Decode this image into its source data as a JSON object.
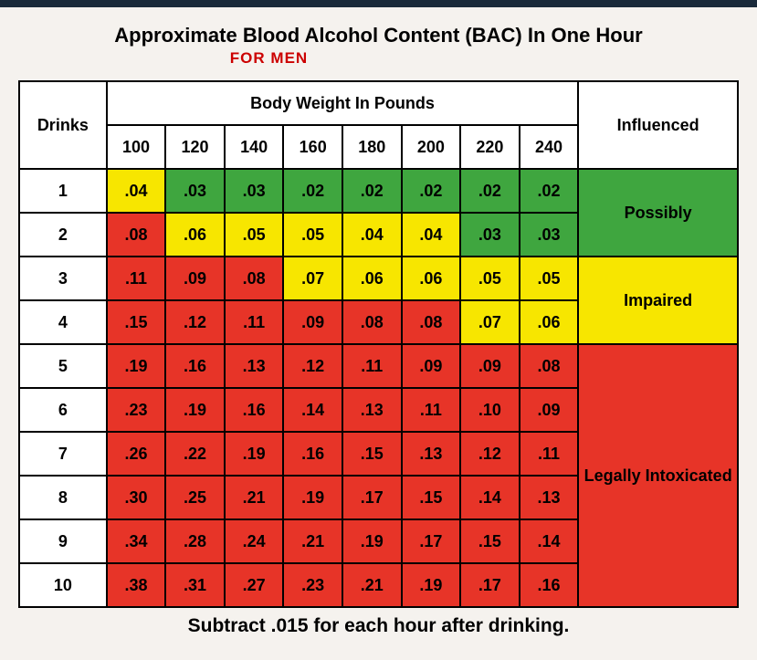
{
  "title": "Approximate Blood Alcohol Content (BAC) In One Hour",
  "subtitle": "FOR MEN",
  "headers": {
    "drinks": "Drinks",
    "weight_span": "Body Weight In Pounds",
    "influenced": "Influenced"
  },
  "weights": [
    "100",
    "120",
    "140",
    "160",
    "180",
    "200",
    "220",
    "240"
  ],
  "drinks": [
    "1",
    "2",
    "3",
    "4",
    "5",
    "6",
    "7",
    "8",
    "9",
    "10"
  ],
  "values": [
    [
      ".04",
      ".03",
      ".03",
      ".02",
      ".02",
      ".02",
      ".02",
      ".02"
    ],
    [
      ".08",
      ".06",
      ".05",
      ".05",
      ".04",
      ".04",
      ".03",
      ".03"
    ],
    [
      ".11",
      ".09",
      ".08",
      ".07",
      ".06",
      ".06",
      ".05",
      ".05"
    ],
    [
      ".15",
      ".12",
      ".11",
      ".09",
      ".08",
      ".08",
      ".07",
      ".06"
    ],
    [
      ".19",
      ".16",
      ".13",
      ".12",
      ".11",
      ".09",
      ".09",
      ".08"
    ],
    [
      ".23",
      ".19",
      ".16",
      ".14",
      ".13",
      ".11",
      ".10",
      ".09"
    ],
    [
      ".26",
      ".22",
      ".19",
      ".16",
      ".15",
      ".13",
      ".12",
      ".11"
    ],
    [
      ".30",
      ".25",
      ".21",
      ".19",
      ".17",
      ".15",
      ".14",
      ".13"
    ],
    [
      ".34",
      ".28",
      ".24",
      ".21",
      ".19",
      ".17",
      ".15",
      ".14"
    ],
    [
      ".38",
      ".31",
      ".27",
      ".23",
      ".21",
      ".19",
      ".17",
      ".16"
    ]
  ],
  "value_levels": [
    [
      "impaired",
      "possibly",
      "possibly",
      "possibly",
      "possibly",
      "possibly",
      "possibly",
      "possibly"
    ],
    [
      "intoxicated",
      "impaired",
      "impaired",
      "impaired",
      "impaired",
      "impaired",
      "possibly",
      "possibly"
    ],
    [
      "intoxicated",
      "intoxicated",
      "intoxicated",
      "impaired",
      "impaired",
      "impaired",
      "impaired",
      "impaired"
    ],
    [
      "intoxicated",
      "intoxicated",
      "intoxicated",
      "intoxicated",
      "intoxicated",
      "intoxicated",
      "impaired",
      "impaired"
    ],
    [
      "intoxicated",
      "intoxicated",
      "intoxicated",
      "intoxicated",
      "intoxicated",
      "intoxicated",
      "intoxicated",
      "intoxicated"
    ],
    [
      "intoxicated",
      "intoxicated",
      "intoxicated",
      "intoxicated",
      "intoxicated",
      "intoxicated",
      "intoxicated",
      "intoxicated"
    ],
    [
      "intoxicated",
      "intoxicated",
      "intoxicated",
      "intoxicated",
      "intoxicated",
      "intoxicated",
      "intoxicated",
      "intoxicated"
    ],
    [
      "intoxicated",
      "intoxicated",
      "intoxicated",
      "intoxicated",
      "intoxicated",
      "intoxicated",
      "intoxicated",
      "intoxicated"
    ],
    [
      "intoxicated",
      "intoxicated",
      "intoxicated",
      "intoxicated",
      "intoxicated",
      "intoxicated",
      "intoxicated",
      "intoxicated"
    ],
    [
      "intoxicated",
      "intoxicated",
      "intoxicated",
      "intoxicated",
      "intoxicated",
      "intoxicated",
      "intoxicated",
      "intoxicated"
    ]
  ],
  "legend": {
    "possibly": "Possibly",
    "impaired": "Impaired",
    "intoxicated": "Legally Intoxicated"
  },
  "legend_spans": {
    "possibly": 2,
    "impaired": 2,
    "intoxicated": 6
  },
  "legend_class": {
    "possibly": "possibly",
    "impaired": "impaired",
    "intoxicated": "intoxicated"
  },
  "colors": {
    "possibly": "#3fa63f",
    "impaired": "#f7e600",
    "intoxicated": "#e73428",
    "background": "#f5f2ee",
    "border": "#000000",
    "subtitle": "#cc0000"
  },
  "footer": "Subtract .015 for each hour after drinking."
}
